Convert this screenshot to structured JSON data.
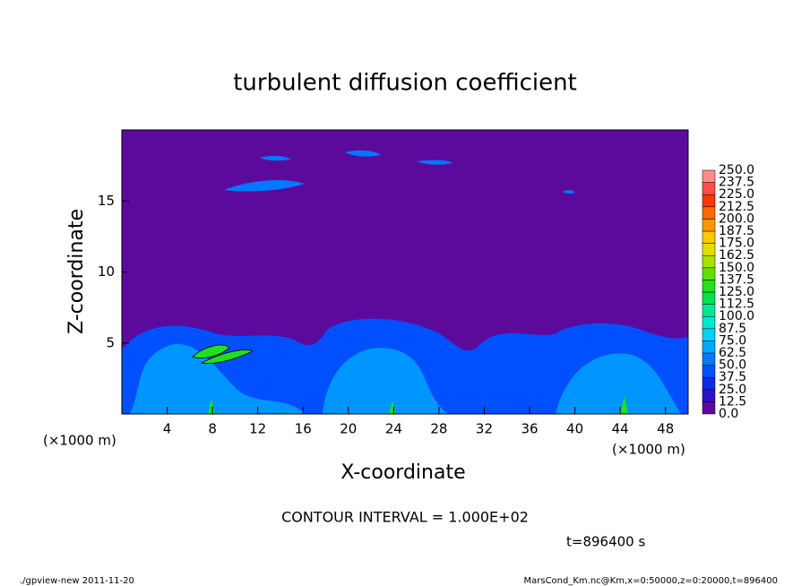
{
  "chart_data": {
    "type": "heatmap",
    "title": "turbulent diffusion coefficient",
    "xlabel": "X-coordinate",
    "ylabel": "Z-coordinate",
    "unit_labels": [
      "(×1000 m)",
      "(×1000 m)"
    ],
    "xlim": [
      0,
      50
    ],
    "xticks": [
      4,
      8,
      12,
      16,
      20,
      24,
      28,
      32,
      36,
      40,
      44,
      48
    ],
    "ylim": [
      0,
      20
    ],
    "yticks": [
      5,
      10,
      15
    ],
    "colorbar": {
      "levels": [
        {
          "value": 0,
          "label": "0.0"
        },
        12.5,
        {
          "value": 25,
          "label": "25.0"
        },
        37.5,
        {
          "value": 50,
          "label": "50.0"
        },
        62.5,
        {
          "value": 75,
          "label": "75.0"
        },
        87.5,
        {
          "value": 100,
          "label": "100.0"
        },
        112.5,
        {
          "value": 125,
          "label": "125.0"
        },
        137.5,
        {
          "value": 150,
          "label": "150.0"
        },
        162.5,
        {
          "value": 175,
          "label": "175.0"
        },
        187.5,
        {
          "value": 200,
          "label": "200.0"
        },
        212.5,
        {
          "value": 225,
          "label": "225.0"
        },
        237.5,
        {
          "value": 250,
          "label": "250.0"
        }
      ],
      "colors": [
        "#5c0a9c",
        "#2a14c8",
        "#0a2ee6",
        "#0050ff",
        "#0078ff",
        "#00a8ff",
        "#00d0ff",
        "#00e8d0",
        "#00e890",
        "#00e050",
        "#20e020",
        "#60e000",
        "#a8e400",
        "#e0e000",
        "#ffc800",
        "#ff9800",
        "#ff6800",
        "#ff3800",
        "#ff4c4c",
        "#ff8c8c"
      ]
    },
    "contour_interval": "CONTOUR INTERVAL = 1.000E+02",
    "time_label": "t=896400 s",
    "footer_left": "./gpview-new  2011-11-20",
    "footer_right": "MarsCond_Km.nc@Km,x=0:50000,z=0:20000,t=896400"
  }
}
